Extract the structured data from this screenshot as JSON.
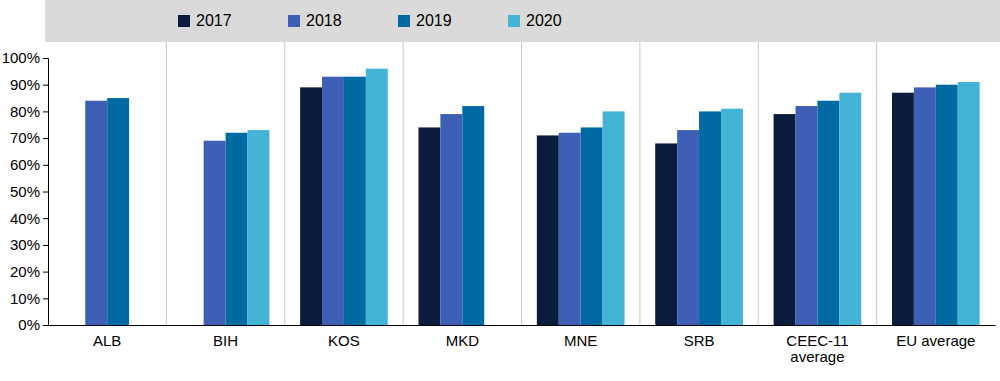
{
  "chart_data": {
    "type": "bar",
    "categories": [
      "ALB",
      "BIH",
      "KOS",
      "MKD",
      "MNE",
      "SRB",
      "CEEC-11 average",
      "EU average"
    ],
    "series": [
      {
        "name": "2017",
        "color": "#0b1c3c",
        "values": [
          null,
          null,
          89,
          74,
          71,
          68,
          79,
          87
        ]
      },
      {
        "name": "2018",
        "color": "#3d5fb5",
        "values": [
          84,
          69,
          93,
          79,
          72,
          73,
          82,
          89
        ]
      },
      {
        "name": "2019",
        "color": "#006ba3",
        "values": [
          85,
          72,
          93,
          82,
          74,
          80,
          84,
          90
        ]
      },
      {
        "name": "2020",
        "color": "#43b4d6",
        "values": [
          null,
          73,
          96,
          null,
          80,
          81,
          87,
          91
        ]
      }
    ],
    "ylim": [
      0,
      100
    ],
    "yticks": [
      {
        "value": 0,
        "label": "0%"
      },
      {
        "value": 10,
        "label": "10%"
      },
      {
        "value": 20,
        "label": "20%"
      },
      {
        "value": 30,
        "label": "30%"
      },
      {
        "value": 40,
        "label": "40%"
      },
      {
        "value": 50,
        "label": "50%"
      },
      {
        "value": 60,
        "label": "60%"
      },
      {
        "value": 70,
        "label": "70%"
      },
      {
        "value": 80,
        "label": "80%"
      },
      {
        "value": 90,
        "label": "90%"
      },
      {
        "value": 100,
        "label": "100%"
      }
    ],
    "grid": false,
    "legend": "top"
  }
}
